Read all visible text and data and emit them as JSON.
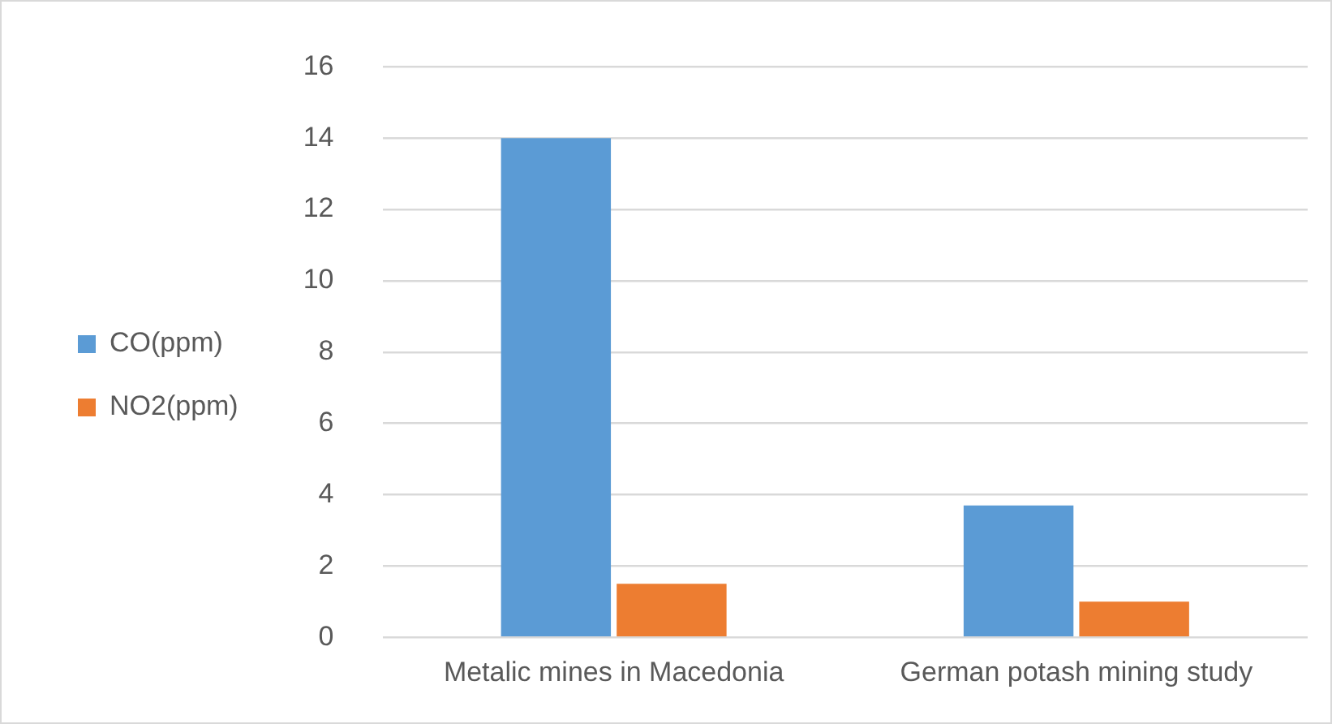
{
  "chart_data": {
    "type": "bar",
    "categories": [
      "Metalic mines in Macedonia",
      "German potash mining study"
    ],
    "series": [
      {
        "name": "CO(ppm)",
        "color": "#5b9bd5",
        "values": [
          14,
          3.7
        ]
      },
      {
        "name": "NO2(ppm)",
        "color": "#ed7d31",
        "values": [
          1.5,
          1.0
        ]
      }
    ],
    "ylim": [
      0,
      16
    ],
    "yticks": [
      0,
      2,
      4,
      6,
      8,
      10,
      12,
      14,
      16
    ],
    "grid": "y",
    "legend": "left"
  }
}
